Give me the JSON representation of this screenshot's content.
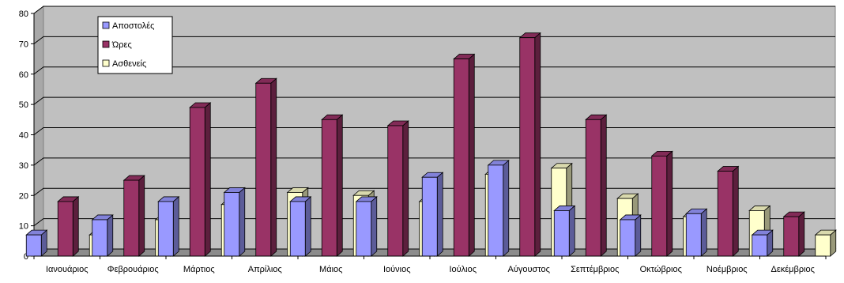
{
  "chart_data": {
    "type": "bar",
    "title": "",
    "xlabel": "",
    "ylabel": "",
    "ylim": [
      0,
      80
    ],
    "yticks": [
      0,
      10,
      20,
      30,
      40,
      50,
      60,
      70,
      80
    ],
    "grid": true,
    "legend_position": "top-left",
    "categories": [
      "Ιανουάριος",
      "Φεβρουάριος",
      "Μάρτιος",
      "Απρίλιος",
      "Μάιος",
      "Ιούνιος",
      "Ιούλιος",
      "Αύγουστος",
      "Σεπτέμβριος",
      "Οκτώβριος",
      "Νοέμβριος",
      "Δεκέμβριος"
    ],
    "series": [
      {
        "name": "Αποστολές",
        "color": "#9999ff",
        "values": [
          7,
          12,
          18,
          21,
          18,
          18,
          26,
          30,
          15,
          12,
          14,
          7
        ]
      },
      {
        "name": "Ώρες",
        "color": "#993366",
        "values": [
          18,
          25,
          49,
          57,
          45,
          43,
          65,
          72,
          45,
          33,
          28,
          13
        ]
      },
      {
        "name": "Ασθενείς",
        "color": "#ffffcc",
        "values": [
          7,
          12,
          17,
          21,
          20,
          18,
          27,
          29,
          19,
          13,
          15,
          7
        ]
      }
    ]
  }
}
